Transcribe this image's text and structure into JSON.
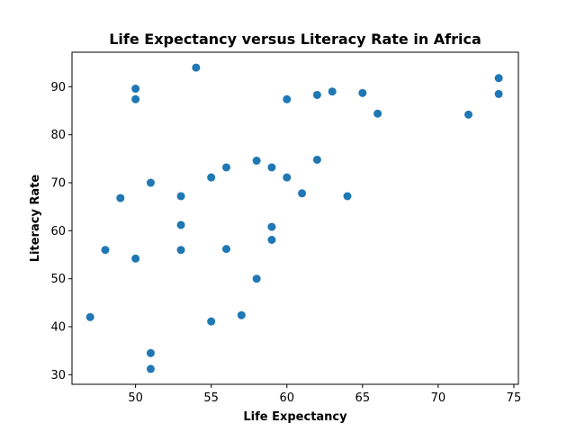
{
  "chart_data": {
    "type": "scatter",
    "title": "Life Expectancy versus Literacy Rate in Africa",
    "xlabel": "Life Expectancy",
    "ylabel": "Literacy Rate",
    "xlim": [
      45.8,
      75.3
    ],
    "ylim": [
      28,
      97.2
    ],
    "xticks": [
      50,
      55,
      60,
      65,
      70,
      75
    ],
    "yticks": [
      30,
      40,
      50,
      60,
      70,
      80,
      90
    ],
    "grid": false,
    "marker_color": "#1f77b4",
    "points": [
      {
        "x": 47,
        "y": 42
      },
      {
        "x": 48,
        "y": 56
      },
      {
        "x": 49,
        "y": 66.8
      },
      {
        "x": 50,
        "y": 89.6
      },
      {
        "x": 50,
        "y": 87.4
      },
      {
        "x": 50,
        "y": 54.2
      },
      {
        "x": 51,
        "y": 70
      },
      {
        "x": 51,
        "y": 34.5
      },
      {
        "x": 51,
        "y": 31.2
      },
      {
        "x": 53,
        "y": 67.2
      },
      {
        "x": 53,
        "y": 61.2
      },
      {
        "x": 53,
        "y": 56
      },
      {
        "x": 54,
        "y": 94
      },
      {
        "x": 55,
        "y": 71.1
      },
      {
        "x": 55,
        "y": 41.1
      },
      {
        "x": 56,
        "y": 73.2
      },
      {
        "x": 56,
        "y": 56.2
      },
      {
        "x": 57,
        "y": 42.4
      },
      {
        "x": 58,
        "y": 74.6
      },
      {
        "x": 58,
        "y": 50
      },
      {
        "x": 59,
        "y": 73.2
      },
      {
        "x": 59,
        "y": 60.8
      },
      {
        "x": 59,
        "y": 58.1
      },
      {
        "x": 60,
        "y": 87.4
      },
      {
        "x": 60,
        "y": 71.1
      },
      {
        "x": 61,
        "y": 67.8
      },
      {
        "x": 62,
        "y": 88.3
      },
      {
        "x": 62,
        "y": 74.8
      },
      {
        "x": 63,
        "y": 89
      },
      {
        "x": 64,
        "y": 67.2
      },
      {
        "x": 65,
        "y": 88.7
      },
      {
        "x": 66,
        "y": 84.4
      },
      {
        "x": 72,
        "y": 84.2
      },
      {
        "x": 74,
        "y": 91.8
      },
      {
        "x": 74,
        "y": 88.5
      }
    ]
  }
}
